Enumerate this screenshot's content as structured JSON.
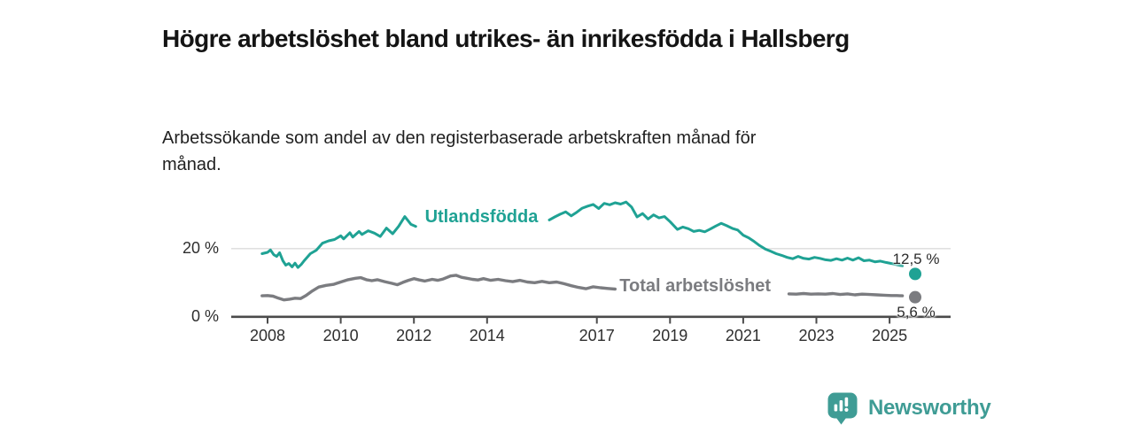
{
  "header": {
    "title": "Högre arbetslöshet bland utrikes- än inrikesfödda i Hallsberg",
    "subtitle": "Arbetssökande som andel av den registerbaserade arbetskraften månad för månad."
  },
  "footer": {
    "brand": "Newsworthy"
  },
  "colors": {
    "foreign_born": "#1fa294",
    "total": "#7b7c80",
    "axis": "#4b4b4b",
    "gridline": "#dcdcdc",
    "tick_text": "#2e2e2e",
    "brand": "#3f9c95"
  },
  "chart_data": {
    "type": "line",
    "title": "Högre arbetslöshet bland utrikes- än inrikesfödda i Hallsberg",
    "subtitle": "Arbetssökande som andel av den registerbaserade arbetskraften månad för månad.",
    "unit": "%",
    "xlim": [
      2007.8,
      2025.9
    ],
    "ylim": [
      0,
      36
    ],
    "grid": "y-20-only",
    "y_ticks": [
      {
        "label": "0 %",
        "value": 0
      },
      {
        "label": "20 %",
        "value": 20
      }
    ],
    "x_ticks": [
      {
        "label": "2008",
        "year": 2008
      },
      {
        "label": "2010",
        "year": 2010
      },
      {
        "label": "2012",
        "year": 2012
      },
      {
        "label": "2014",
        "year": 2014
      },
      {
        "label": "2017",
        "year": 2017
      },
      {
        "label": "2019",
        "year": 2019
      },
      {
        "label": "2021",
        "year": 2021
      },
      {
        "label": "2023",
        "year": 2023
      },
      {
        "label": "2025",
        "year": 2025
      }
    ],
    "series": [
      {
        "name": "Utlandsfödda",
        "color": "#1fa294",
        "inline_label": {
          "text": "Utlandsfödda",
          "x": 2012.3,
          "y": 28.9
        },
        "end_dot": {
          "x": 2025.7,
          "y": 12.5,
          "label": "12,5 %"
        },
        "segments": [
          [
            [
              2007.85,
              18.5
            ],
            [
              2008.0,
              18.9
            ],
            [
              2008.08,
              19.6
            ],
            [
              2008.17,
              18.2
            ],
            [
              2008.25,
              17.7
            ],
            [
              2008.33,
              18.8
            ],
            [
              2008.42,
              16.4
            ],
            [
              2008.5,
              15.1
            ],
            [
              2008.58,
              15.6
            ],
            [
              2008.67,
              14.6
            ],
            [
              2008.75,
              15.7
            ],
            [
              2008.83,
              14.4
            ],
            [
              2008.92,
              15.3
            ],
            [
              2009.0,
              16.4
            ],
            [
              2009.17,
              18.5
            ],
            [
              2009.33,
              19.5
            ],
            [
              2009.5,
              21.6
            ],
            [
              2009.67,
              22.3
            ],
            [
              2009.83,
              22.7
            ],
            [
              2010.0,
              23.8
            ],
            [
              2010.08,
              22.9
            ],
            [
              2010.25,
              24.7
            ],
            [
              2010.33,
              23.4
            ],
            [
              2010.5,
              25.1
            ],
            [
              2010.58,
              24.2
            ],
            [
              2010.75,
              25.3
            ],
            [
              2010.92,
              24.6
            ],
            [
              2011.08,
              23.6
            ],
            [
              2011.25,
              26.1
            ],
            [
              2011.42,
              24.4
            ],
            [
              2011.58,
              26.6
            ],
            [
              2011.75,
              29.5
            ],
            [
              2011.92,
              27.2
            ],
            [
              2012.05,
              26.6
            ]
          ],
          [
            [
              2015.7,
              28.5
            ],
            [
              2015.85,
              29.4
            ],
            [
              2016.0,
              30.2
            ],
            [
              2016.15,
              30.9
            ],
            [
              2016.3,
              29.7
            ],
            [
              2016.45,
              30.8
            ],
            [
              2016.6,
              32.0
            ],
            [
              2016.75,
              32.6
            ],
            [
              2016.9,
              33.1
            ],
            [
              2017.05,
              31.9
            ],
            [
              2017.2,
              33.4
            ],
            [
              2017.35,
              33.0
            ],
            [
              2017.5,
              33.6
            ],
            [
              2017.65,
              33.2
            ],
            [
              2017.8,
              33.8
            ],
            [
              2017.95,
              32.3
            ],
            [
              2018.1,
              29.4
            ],
            [
              2018.25,
              30.4
            ],
            [
              2018.4,
              28.8
            ],
            [
              2018.55,
              30.0
            ],
            [
              2018.7,
              29.1
            ],
            [
              2018.85,
              29.5
            ],
            [
              2019.0,
              28.0
            ],
            [
              2019.2,
              25.7
            ],
            [
              2019.35,
              26.4
            ],
            [
              2019.5,
              25.9
            ],
            [
              2019.65,
              25.1
            ],
            [
              2019.8,
              25.4
            ],
            [
              2019.95,
              25.0
            ],
            [
              2020.1,
              25.8
            ],
            [
              2020.25,
              26.7
            ],
            [
              2020.4,
              27.5
            ],
            [
              2020.55,
              26.8
            ],
            [
              2020.7,
              26.0
            ],
            [
              2020.85,
              25.5
            ],
            [
              2021.0,
              24.0
            ],
            [
              2021.15,
              23.2
            ],
            [
              2021.3,
              22.1
            ],
            [
              2021.45,
              20.9
            ],
            [
              2021.6,
              19.9
            ],
            [
              2021.75,
              19.2
            ],
            [
              2021.9,
              18.5
            ],
            [
              2022.05,
              18.0
            ],
            [
              2022.2,
              17.4
            ],
            [
              2022.35,
              17.0
            ],
            [
              2022.5,
              17.7
            ],
            [
              2022.65,
              17.1
            ],
            [
              2022.8,
              16.9
            ],
            [
              2022.95,
              17.4
            ],
            [
              2023.1,
              17.1
            ],
            [
              2023.25,
              16.7
            ],
            [
              2023.4,
              16.5
            ],
            [
              2023.55,
              17.0
            ],
            [
              2023.7,
              16.6
            ],
            [
              2023.85,
              17.2
            ],
            [
              2024.0,
              16.6
            ],
            [
              2024.15,
              17.3
            ],
            [
              2024.3,
              16.4
            ],
            [
              2024.45,
              16.6
            ],
            [
              2024.6,
              16.1
            ],
            [
              2024.75,
              16.3
            ],
            [
              2024.9,
              15.9
            ],
            [
              2025.05,
              15.6
            ],
            [
              2025.2,
              15.2
            ],
            [
              2025.35,
              14.9
            ]
          ]
        ]
      },
      {
        "name": "Total arbetslöshet",
        "color": "#7b7c80",
        "inline_label": {
          "text": "Total arbetslöshet",
          "x": 2017.62,
          "y": 8.4
        },
        "end_dot": {
          "x": 2025.7,
          "y": 5.6,
          "label": "5,6 %"
        },
        "segments": [
          [
            [
              2007.85,
              6.0
            ],
            [
              2008.0,
              6.1
            ],
            [
              2008.15,
              5.9
            ],
            [
              2008.3,
              5.3
            ],
            [
              2008.45,
              4.8
            ],
            [
              2008.6,
              5.0
            ],
            [
              2008.75,
              5.3
            ],
            [
              2008.9,
              5.2
            ],
            [
              2009.05,
              6.1
            ],
            [
              2009.2,
              7.3
            ],
            [
              2009.4,
              8.6
            ],
            [
              2009.6,
              9.1
            ],
            [
              2009.8,
              9.4
            ],
            [
              2010.0,
              10.1
            ],
            [
              2010.2,
              10.8
            ],
            [
              2010.4,
              11.2
            ],
            [
              2010.55,
              11.4
            ],
            [
              2010.7,
              10.8
            ],
            [
              2010.85,
              10.5
            ],
            [
              2011.0,
              10.8
            ],
            [
              2011.2,
              10.2
            ],
            [
              2011.4,
              9.7
            ],
            [
              2011.55,
              9.3
            ],
            [
              2011.7,
              10.0
            ],
            [
              2011.85,
              10.6
            ],
            [
              2012.0,
              11.1
            ],
            [
              2012.15,
              10.7
            ],
            [
              2012.3,
              10.4
            ],
            [
              2012.5,
              10.9
            ],
            [
              2012.65,
              10.6
            ],
            [
              2012.8,
              11.0
            ],
            [
              2013.0,
              11.9
            ],
            [
              2013.15,
              12.1
            ],
            [
              2013.3,
              11.5
            ],
            [
              2013.45,
              11.2
            ],
            [
              2013.6,
              10.9
            ],
            [
              2013.75,
              10.7
            ],
            [
              2013.9,
              11.1
            ],
            [
              2014.1,
              10.6
            ],
            [
              2014.3,
              10.9
            ],
            [
              2014.5,
              10.5
            ],
            [
              2014.7,
              10.2
            ],
            [
              2014.9,
              10.6
            ],
            [
              2015.1,
              10.1
            ],
            [
              2015.3,
              9.9
            ],
            [
              2015.5,
              10.3
            ],
            [
              2015.7,
              9.9
            ],
            [
              2015.9,
              10.1
            ],
            [
              2016.1,
              9.6
            ],
            [
              2016.3,
              9.0
            ],
            [
              2016.5,
              8.5
            ],
            [
              2016.7,
              8.1
            ],
            [
              2016.9,
              8.7
            ],
            [
              2017.1,
              8.4
            ],
            [
              2017.3,
              8.2
            ],
            [
              2017.5,
              8.0
            ]
          ],
          [
            [
              2022.25,
              6.6
            ],
            [
              2022.45,
              6.5
            ],
            [
              2022.65,
              6.7
            ],
            [
              2022.85,
              6.5
            ],
            [
              2023.05,
              6.6
            ],
            [
              2023.25,
              6.5
            ],
            [
              2023.45,
              6.7
            ],
            [
              2023.65,
              6.4
            ],
            [
              2023.85,
              6.6
            ],
            [
              2024.05,
              6.3
            ],
            [
              2024.25,
              6.5
            ],
            [
              2024.45,
              6.4
            ],
            [
              2024.65,
              6.3
            ],
            [
              2024.85,
              6.2
            ],
            [
              2025.05,
              6.1
            ],
            [
              2025.2,
              6.1
            ],
            [
              2025.35,
              6.0
            ]
          ]
        ]
      }
    ]
  }
}
